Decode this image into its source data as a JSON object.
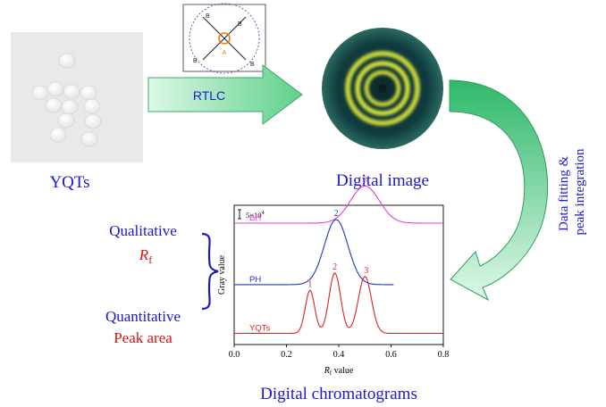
{
  "left_panel": {
    "sample_label": "YQTs"
  },
  "rtlc": {
    "arrow_label": "RTLC",
    "inset_center_label": "A",
    "inset_corner_label": "B"
  },
  "digital_image": {
    "label": "Digital image"
  },
  "process_arrow": {
    "label_line1": "Data fitting &",
    "label_line2": "peak integration"
  },
  "analysis": {
    "qualitative_label": "Qualitative",
    "rf_symbol": "R",
    "rf_subscript": "f",
    "quantitative_label": "Quantitative",
    "peak_area_label": "Peak area"
  },
  "chromatogram_caption": "Digital chromatograms",
  "colors": {
    "arrow_fill_light": "#c8f3d6",
    "arrow_fill_dark": "#5fd08a",
    "arrow_stroke": "#2e8b57",
    "text_blue": "#1a1acd",
    "text_red": "#d11",
    "bh_color": "#e040d0",
    "ph_color": "#2233cc",
    "yqt_color": "#dd2222",
    "ring_yellow": "#e6ef3a"
  },
  "chart_data": {
    "type": "line",
    "xlabel": "R",
    "xlabel_sub": "f",
    "xlabel_suffix": " value",
    "ylabel": "Gray value",
    "xlim": [
      0.0,
      0.8
    ],
    "x_ticks": [
      "0.0",
      "0.2",
      "0.4",
      "0.6",
      "0.8"
    ],
    "x_tick_values": [
      0.0,
      0.2,
      0.4,
      0.6,
      0.8
    ],
    "scale_bar_label": "5×10",
    "scale_bar_exp": "4",
    "series": [
      {
        "name": "BH",
        "color_key": "bh_color",
        "baseline": 1.0,
        "x_start": 0.0,
        "x_end": 0.8,
        "peaks": [
          {
            "center": 0.5,
            "height": 0.32,
            "width": 0.055,
            "label": "3",
            "label_x": 0.5
          }
        ]
      },
      {
        "name": "PH",
        "color_key": "ph_color",
        "baseline": 0.47,
        "x_start": 0.0,
        "x_end": 0.61,
        "peaks": [
          {
            "center": 0.39,
            "height": 0.56,
            "width": 0.045,
            "label": "2",
            "label_x": 0.39
          }
        ]
      },
      {
        "name": "YQTs",
        "color_key": "yqt_color",
        "baseline": 0.05,
        "x_start": 0.0,
        "x_end": 0.8,
        "peaks": [
          {
            "center": 0.29,
            "height": 0.37,
            "width": 0.018,
            "label": "1",
            "label_x": 0.29
          },
          {
            "center": 0.385,
            "height": 0.52,
            "width": 0.022,
            "label": "2",
            "label_x": 0.385
          },
          {
            "center": 0.5,
            "height": 0.49,
            "width": 0.025,
            "label": "3",
            "label_x": 0.505
          }
        ]
      }
    ]
  }
}
